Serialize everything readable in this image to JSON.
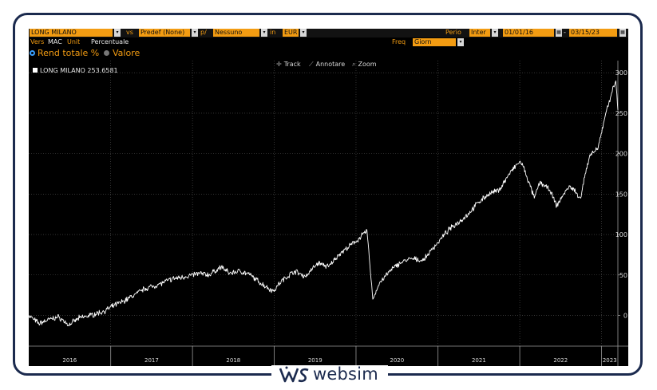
{
  "header": {
    "security": "LONG MILANO",
    "vs_label": "vs",
    "benchmark": "Predef (None)",
    "per_label": "p/",
    "per_value": "Nessuno",
    "in_label": "in",
    "currency": "EUR",
    "period_label": "Perio",
    "period_value": "Inter",
    "start_date": "01/01/16",
    "end_date": "03/15/23",
    "vers_label": "Vers",
    "vers_value": "MAC",
    "unit_label": "Unit",
    "unit_value": "Percentuale",
    "freq_label": "Freq",
    "freq_value": "Giorn"
  },
  "modes": {
    "total_return": "Rend totale %",
    "value": "Valore",
    "selected": "total_return"
  },
  "tools": {
    "track": "Track",
    "annotate": "Annotare",
    "zoom": "Zoom"
  },
  "legend": {
    "name": "LONG MILANO",
    "last_value": "253.6581"
  },
  "watermark": {
    "text": "websim"
  },
  "colors": {
    "background": "#000000",
    "accent": "#f39c12",
    "line": "#ffffff",
    "grid": "#555555",
    "frame": "#1b2a4e",
    "radio_on": "#3aa0ff"
  },
  "chart_data": {
    "type": "line",
    "title": "",
    "xlabel": "",
    "ylabel": "",
    "x_ticks": [
      "2016",
      "2017",
      "2018",
      "2019",
      "2020",
      "2021",
      "2022",
      "2023"
    ],
    "y_ticks": [
      "0",
      "50",
      "100",
      "150",
      "200",
      "250",
      "300"
    ],
    "ylim": [
      -38,
      315
    ],
    "xlim": [
      "2016-01-01",
      "2023-03-15"
    ],
    "grid": true,
    "y_axis_position": "right",
    "legend_position": "top-left",
    "series": [
      {
        "name": "LONG MILANO",
        "points": [
          [
            "2016-01-01",
            0
          ],
          [
            "2016-02-15",
            -10
          ],
          [
            "2016-04-01",
            -5
          ],
          [
            "2016-05-15",
            -2
          ],
          [
            "2016-06-27",
            -12
          ],
          [
            "2016-08-15",
            -3
          ],
          [
            "2016-10-01",
            0
          ],
          [
            "2016-12-01",
            5
          ],
          [
            "2017-01-15",
            12
          ],
          [
            "2017-03-01",
            18
          ],
          [
            "2017-04-15",
            25
          ],
          [
            "2017-06-01",
            33
          ],
          [
            "2017-08-01",
            38
          ],
          [
            "2017-10-01",
            45
          ],
          [
            "2017-12-01",
            48
          ],
          [
            "2018-02-01",
            52
          ],
          [
            "2018-03-15",
            50
          ],
          [
            "2018-05-10",
            60
          ],
          [
            "2018-06-15",
            52
          ],
          [
            "2018-08-01",
            55
          ],
          [
            "2018-09-15",
            50
          ],
          [
            "2018-11-01",
            40
          ],
          [
            "2018-12-27",
            30
          ],
          [
            "2019-02-01",
            42
          ],
          [
            "2019-04-01",
            55
          ],
          [
            "2019-05-20",
            48
          ],
          [
            "2019-07-15",
            65
          ],
          [
            "2019-09-01",
            60
          ],
          [
            "2019-10-15",
            75
          ],
          [
            "2019-12-01",
            85
          ],
          [
            "2020-01-15",
            95
          ],
          [
            "2020-02-19",
            105
          ],
          [
            "2020-03-16",
            20
          ],
          [
            "2020-04-15",
            40
          ],
          [
            "2020-06-01",
            55
          ],
          [
            "2020-07-15",
            65
          ],
          [
            "2020-09-01",
            70
          ],
          [
            "2020-10-28",
            68
          ],
          [
            "2020-11-30",
            80
          ],
          [
            "2020-12-31",
            90
          ],
          [
            "2021-02-15",
            105
          ],
          [
            "2021-04-01",
            115
          ],
          [
            "2021-05-15",
            125
          ],
          [
            "2021-07-01",
            140
          ],
          [
            "2021-08-15",
            150
          ],
          [
            "2021-10-01",
            155
          ],
          [
            "2021-11-15",
            175
          ],
          [
            "2021-12-31",
            190
          ],
          [
            "2022-01-15",
            185
          ],
          [
            "2022-03-07",
            145
          ],
          [
            "2022-04-01",
            165
          ],
          [
            "2022-05-15",
            155
          ],
          [
            "2022-06-15",
            135
          ],
          [
            "2022-07-15",
            150
          ],
          [
            "2022-08-15",
            160
          ],
          [
            "2022-09-30",
            145
          ],
          [
            "2022-10-20",
            175
          ],
          [
            "2022-11-15",
            200
          ],
          [
            "2022-12-15",
            205
          ],
          [
            "2023-01-20",
            250
          ],
          [
            "2023-02-15",
            275
          ],
          [
            "2023-03-06",
            290
          ],
          [
            "2023-03-15",
            254
          ]
        ]
      }
    ]
  }
}
